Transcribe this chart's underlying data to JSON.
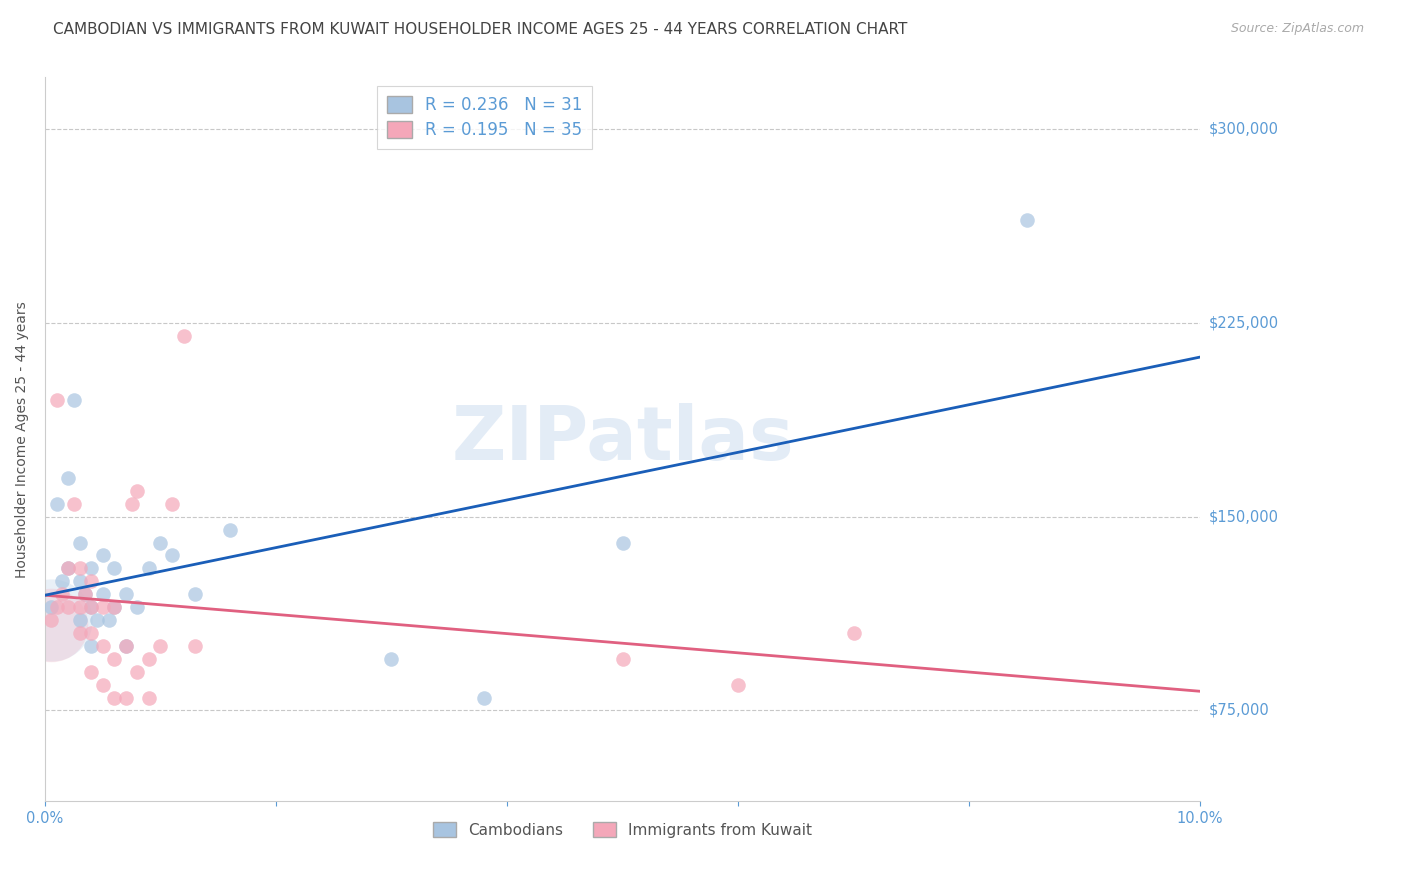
{
  "title": "CAMBODIAN VS IMMIGRANTS FROM KUWAIT HOUSEHOLDER INCOME AGES 25 - 44 YEARS CORRELATION CHART",
  "source": "Source: ZipAtlas.com",
  "ylabel": "Householder Income Ages 25 - 44 years",
  "xlim": [
    0.0,
    0.1
  ],
  "ylim": [
    40000,
    320000
  ],
  "yticks": [
    75000,
    150000,
    225000,
    300000
  ],
  "xticks": [
    0.0,
    0.02,
    0.04,
    0.06,
    0.08,
    0.1
  ],
  "watermark": "ZIPatlas",
  "cambodian_R": 0.236,
  "cambodian_N": 31,
  "kuwait_R": 0.195,
  "kuwait_N": 35,
  "cambodian_color": "#a8c4e0",
  "kuwait_color": "#f4a7b9",
  "cambodian_line_color": "#1a5eb8",
  "kuwait_line_color": "#e06080",
  "cambodian_x": [
    0.0005,
    0.001,
    0.0015,
    0.002,
    0.002,
    0.0025,
    0.003,
    0.003,
    0.003,
    0.0035,
    0.004,
    0.004,
    0.004,
    0.0045,
    0.005,
    0.005,
    0.0055,
    0.006,
    0.006,
    0.007,
    0.007,
    0.008,
    0.009,
    0.01,
    0.011,
    0.013,
    0.016,
    0.03,
    0.038,
    0.05,
    0.085
  ],
  "cambodian_y": [
    115000,
    155000,
    125000,
    130000,
    165000,
    195000,
    110000,
    125000,
    140000,
    120000,
    100000,
    115000,
    130000,
    110000,
    120000,
    135000,
    110000,
    115000,
    130000,
    100000,
    120000,
    115000,
    130000,
    140000,
    135000,
    120000,
    145000,
    95000,
    80000,
    140000,
    265000
  ],
  "kuwait_x": [
    0.0005,
    0.001,
    0.001,
    0.0015,
    0.002,
    0.002,
    0.0025,
    0.003,
    0.003,
    0.003,
    0.0035,
    0.004,
    0.004,
    0.004,
    0.004,
    0.005,
    0.005,
    0.005,
    0.006,
    0.006,
    0.006,
    0.007,
    0.007,
    0.0075,
    0.008,
    0.008,
    0.009,
    0.009,
    0.01,
    0.011,
    0.012,
    0.013,
    0.05,
    0.06,
    0.07
  ],
  "kuwait_y": [
    110000,
    195000,
    115000,
    120000,
    115000,
    130000,
    155000,
    105000,
    115000,
    130000,
    120000,
    90000,
    105000,
    115000,
    125000,
    85000,
    100000,
    115000,
    80000,
    95000,
    115000,
    80000,
    100000,
    155000,
    90000,
    160000,
    80000,
    95000,
    100000,
    155000,
    220000,
    100000,
    95000,
    85000,
    105000
  ],
  "background_color": "#ffffff",
  "grid_color": "#c8c8c8",
  "title_color": "#444444",
  "axis_label_color": "#555555",
  "tick_label_color": "#5b9bd5",
  "title_fontsize": 11,
  "source_fontsize": 9,
  "legend_fontsize": 12,
  "ylabel_fontsize": 10,
  "marker_size": 110
}
